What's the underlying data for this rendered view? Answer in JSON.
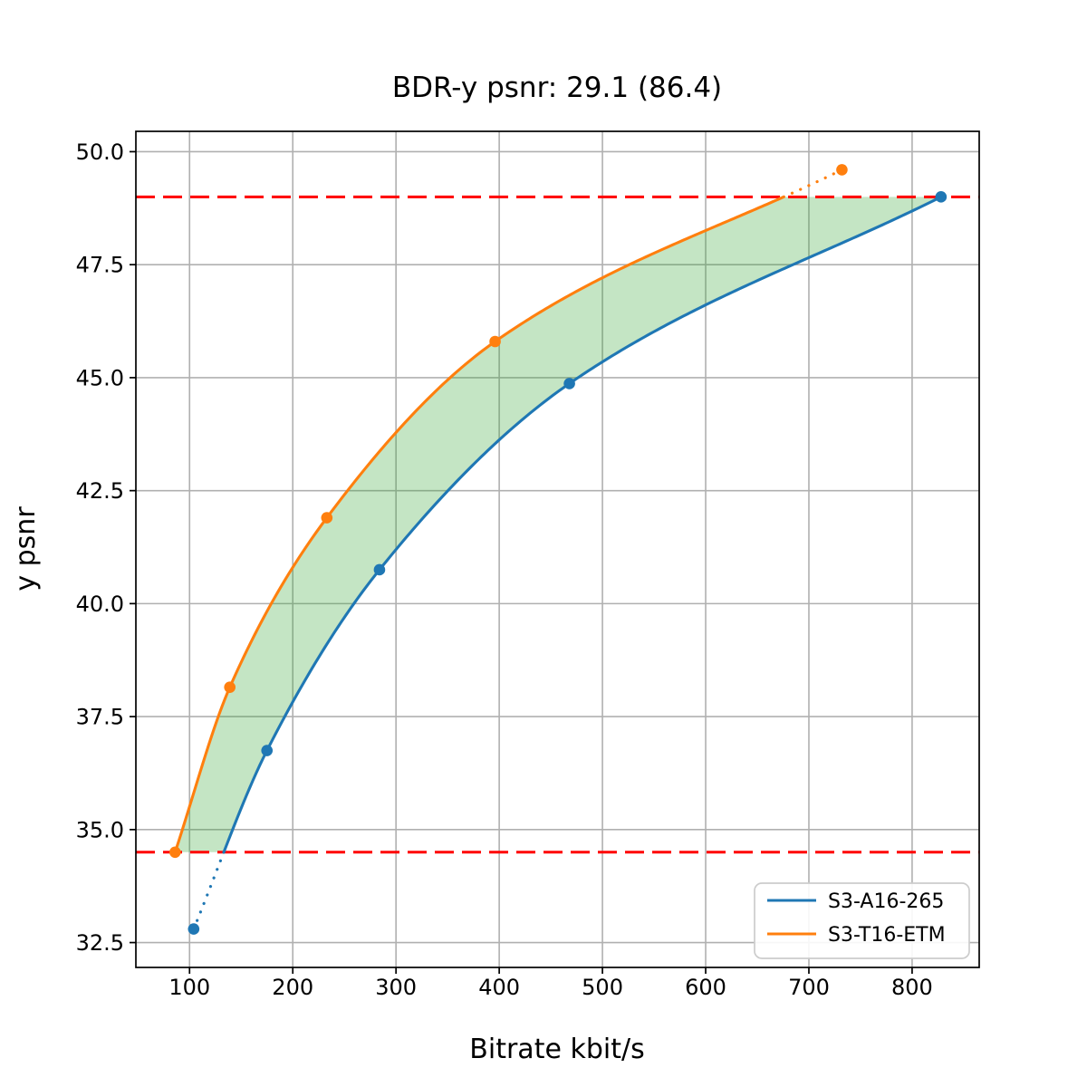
{
  "chart_data": {
    "type": "line",
    "title": "BDR-y psnr: 29.1 (86.4)",
    "xlabel": "Bitrate kbit/s",
    "ylabel": "y psnr",
    "xlim": [
      48,
      865
    ],
    "ylim": [
      31.95,
      50.45
    ],
    "xticks": [
      100,
      200,
      300,
      400,
      500,
      600,
      700,
      800
    ],
    "xtick_labels": [
      "100",
      "200",
      "300",
      "400",
      "500",
      "600",
      "700",
      "800"
    ],
    "yticks": [
      32.5,
      35.0,
      37.5,
      40.0,
      42.5,
      45.0,
      47.5,
      50.0
    ],
    "ytick_labels": [
      "32.5",
      "35.0",
      "37.5",
      "40.0",
      "42.5",
      "45.0",
      "47.5",
      "50.0"
    ],
    "grid": true,
    "grid_color": "#b0b0b0",
    "legend_position": "lower right",
    "series": [
      {
        "name": "S3-A16-265",
        "color": "#1f77b4",
        "x": [
          104,
          175,
          284,
          468,
          828
        ],
        "y": [
          32.8,
          36.75,
          40.75,
          44.87,
          49.0
        ]
      },
      {
        "name": "S3-T16-ETM",
        "color": "#ff7f0e",
        "x": [
          86,
          139,
          233,
          396,
          732
        ],
        "y": [
          34.5,
          38.15,
          41.9,
          45.8,
          49.6
        ]
      }
    ],
    "overlap_region": {
      "y_min": 34.5,
      "y_max": 49.0,
      "bound_line_color": "#ff0000",
      "bound_line_style": "dashed",
      "fill_color": "rgba(44,160,44,0.28)",
      "out_of_range_style": "dotted"
    }
  }
}
